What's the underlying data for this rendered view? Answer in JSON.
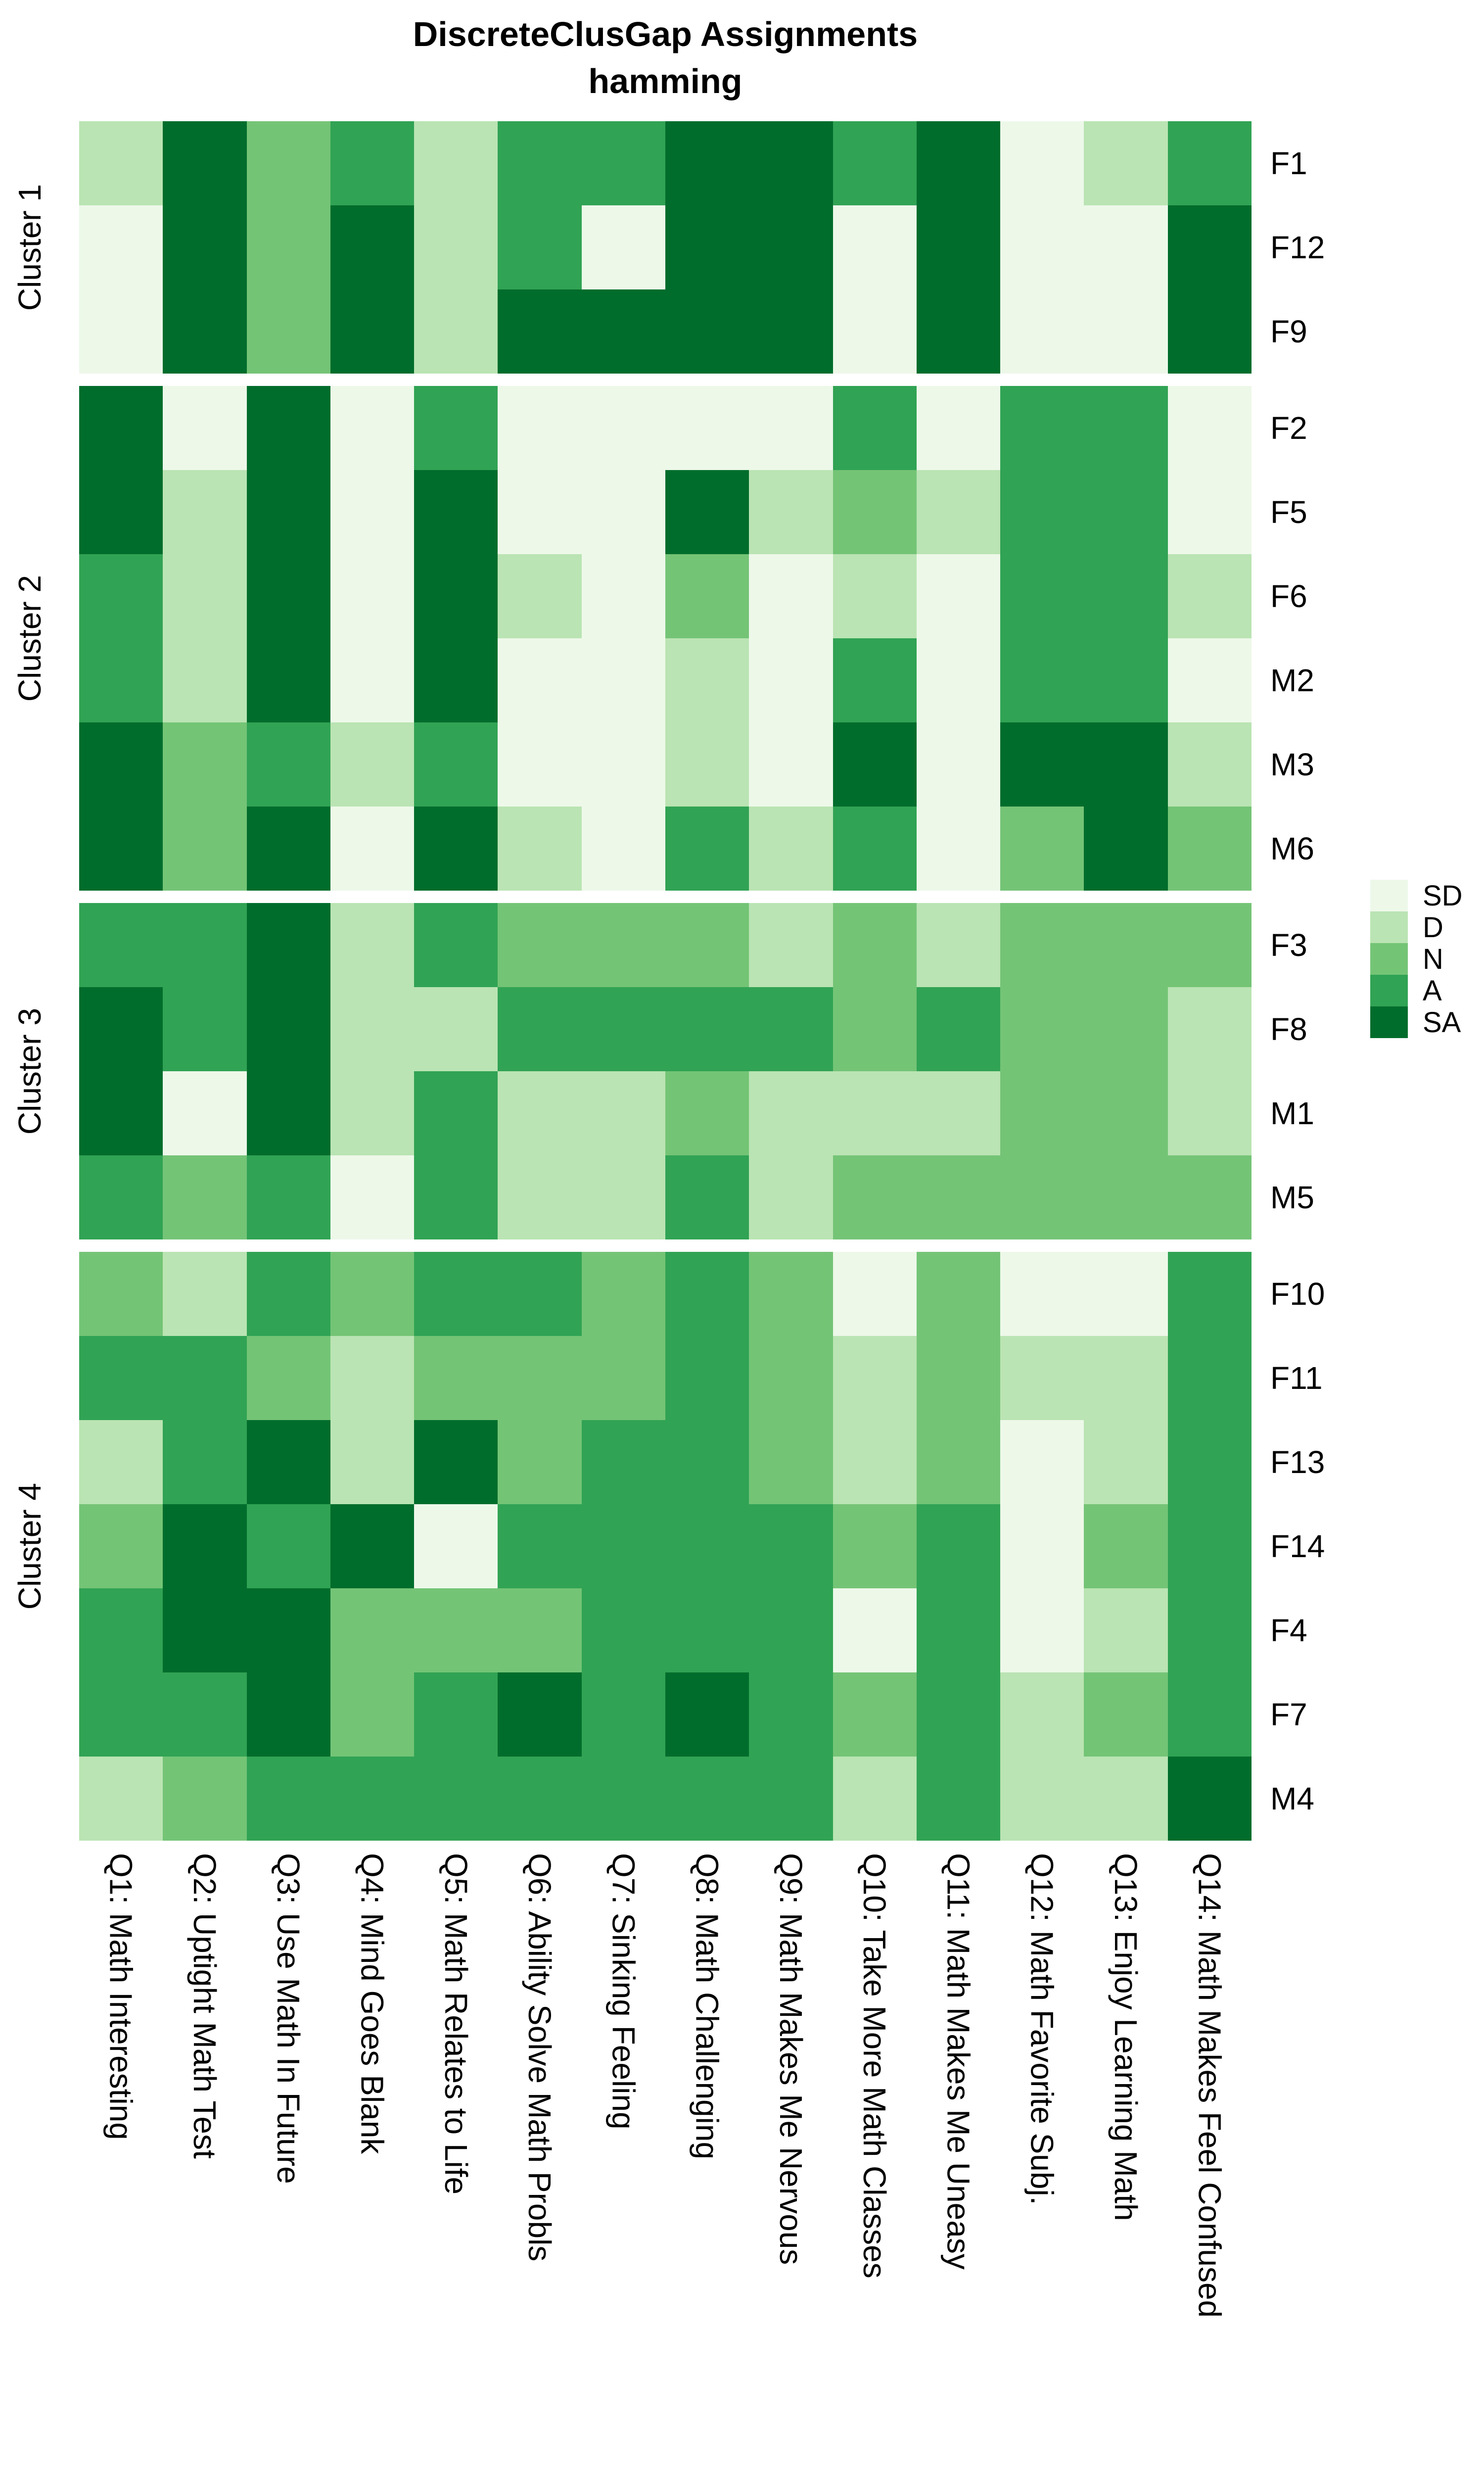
{
  "title": {
    "line1": "DiscreteClusGap Assignments",
    "line2": "hamming"
  },
  "legend": {
    "entries": [
      {
        "label": "SD",
        "color": "#edf8e9"
      },
      {
        "label": "D",
        "color": "#bae4b3"
      },
      {
        "label": "N",
        "color": "#74c476"
      },
      {
        "label": "A",
        "color": "#31a354"
      },
      {
        "label": "SA",
        "color": "#006d2c"
      }
    ]
  },
  "chart_data": {
    "type": "heatmap",
    "title": "DiscreteClusGap Assignments",
    "subtitle": "hamming",
    "legend_position": "right",
    "grid": false,
    "scale": {
      "SD": "#edf8e9",
      "D": "#bae4b3",
      "N": "#74c476",
      "A": "#31a354",
      "SA": "#006d2c"
    },
    "scale_order": [
      "SD",
      "D",
      "N",
      "A",
      "SA"
    ],
    "columns": [
      "Q1: Math Interesting",
      "Q2: Uptight Math Test",
      "Q3: Use Math In Future",
      "Q4: Mind Goes Blank",
      "Q5: Math Relates to Life",
      "Q6: Ability Solve Math Probls",
      "Q7: Sinking Feeling",
      "Q8: Math Challenging",
      "Q9: Math Makes Me Nervous",
      "Q10: Take More Math Classes",
      "Q11: Math Makes Me Uneasy",
      "Q12: Math Favorite Subj.",
      "Q13: Enjoy Learning Math",
      "Q14: Math Makes Feel Confused"
    ],
    "clusters": [
      {
        "name": "Cluster 1",
        "rows": [
          {
            "label": "F1",
            "values": [
              "D",
              "SA",
              "N",
              "A",
              "D",
              "A",
              "A",
              "SA",
              "SA",
              "A",
              "SA",
              "SD",
              "D",
              "A"
            ]
          },
          {
            "label": "F12",
            "values": [
              "SD",
              "SA",
              "N",
              "SA",
              "D",
              "A",
              "SD",
              "SA",
              "SA",
              "SD",
              "SA",
              "SD",
              "SD",
              "SA"
            ]
          },
          {
            "label": "F9",
            "values": [
              "SD",
              "SA",
              "N",
              "SA",
              "D",
              "SA",
              "SA",
              "SA",
              "SA",
              "SD",
              "SA",
              "SD",
              "SD",
              "SA"
            ]
          }
        ]
      },
      {
        "name": "Cluster 2",
        "rows": [
          {
            "label": "F2",
            "values": [
              "SA",
              "SD",
              "SA",
              "SD",
              "A",
              "SD",
              "SD",
              "SD",
              "SD",
              "A",
              "SD",
              "A",
              "A",
              "SD"
            ]
          },
          {
            "label": "F5",
            "values": [
              "SA",
              "D",
              "SA",
              "SD",
              "SA",
              "SD",
              "SD",
              "SA",
              "D",
              "N",
              "D",
              "A",
              "A",
              "SD"
            ]
          },
          {
            "label": "F6",
            "values": [
              "A",
              "D",
              "SA",
              "SD",
              "SA",
              "D",
              "SD",
              "N",
              "SD",
              "D",
              "SD",
              "A",
              "A",
              "D"
            ]
          },
          {
            "label": "M2",
            "values": [
              "A",
              "D",
              "SA",
              "SD",
              "SA",
              "SD",
              "SD",
              "D",
              "SD",
              "A",
              "SD",
              "A",
              "A",
              "SD"
            ]
          },
          {
            "label": "M3",
            "values": [
              "SA",
              "N",
              "A",
              "D",
              "A",
              "SD",
              "SD",
              "D",
              "SD",
              "SA",
              "SD",
              "SA",
              "SA",
              "D"
            ]
          },
          {
            "label": "M6",
            "values": [
              "SA",
              "N",
              "SA",
              "SD",
              "SA",
              "D",
              "SD",
              "A",
              "D",
              "A",
              "SD",
              "N",
              "SA",
              "N"
            ]
          }
        ]
      },
      {
        "name": "Cluster 3",
        "rows": [
          {
            "label": "F3",
            "values": [
              "A",
              "A",
              "SA",
              "D",
              "A",
              "N",
              "N",
              "N",
              "D",
              "N",
              "D",
              "N",
              "N",
              "N"
            ]
          },
          {
            "label": "F8",
            "values": [
              "SA",
              "A",
              "SA",
              "D",
              "D",
              "A",
              "A",
              "A",
              "A",
              "N",
              "A",
              "N",
              "N",
              "D"
            ]
          },
          {
            "label": "M1",
            "values": [
              "SA",
              "SD",
              "SA",
              "D",
              "A",
              "D",
              "D",
              "N",
              "D",
              "D",
              "D",
              "N",
              "N",
              "D"
            ]
          },
          {
            "label": "M5",
            "values": [
              "A",
              "N",
              "A",
              "SD",
              "A",
              "D",
              "D",
              "A",
              "D",
              "N",
              "N",
              "N",
              "N",
              "N"
            ]
          }
        ]
      },
      {
        "name": "Cluster 4",
        "rows": [
          {
            "label": "F10",
            "values": [
              "N",
              "D",
              "A",
              "N",
              "A",
              "A",
              "N",
              "A",
              "N",
              "SD",
              "N",
              "SD",
              "SD",
              "A"
            ]
          },
          {
            "label": "F11",
            "values": [
              "A",
              "A",
              "N",
              "D",
              "N",
              "N",
              "N",
              "A",
              "N",
              "D",
              "N",
              "D",
              "D",
              "A"
            ]
          },
          {
            "label": "F13",
            "values": [
              "D",
              "A",
              "SA",
              "D",
              "SA",
              "N",
              "A",
              "A",
              "N",
              "D",
              "N",
              "SD",
              "D",
              "A"
            ]
          },
          {
            "label": "F14",
            "values": [
              "N",
              "SA",
              "A",
              "SA",
              "SD",
              "A",
              "A",
              "A",
              "A",
              "N",
              "A",
              "SD",
              "N",
              "A"
            ]
          },
          {
            "label": "F4",
            "values": [
              "A",
              "SA",
              "SA",
              "N",
              "N",
              "N",
              "A",
              "A",
              "A",
              "SD",
              "A",
              "SD",
              "D",
              "A"
            ]
          },
          {
            "label": "F7",
            "values": [
              "A",
              "A",
              "SA",
              "N",
              "A",
              "SA",
              "A",
              "SA",
              "A",
              "N",
              "A",
              "D",
              "N",
              "A"
            ]
          },
          {
            "label": "M4",
            "values": [
              "D",
              "N",
              "A",
              "A",
              "A",
              "A",
              "A",
              "A",
              "A",
              "D",
              "A",
              "D",
              "D",
              "SA"
            ]
          }
        ]
      }
    ]
  }
}
